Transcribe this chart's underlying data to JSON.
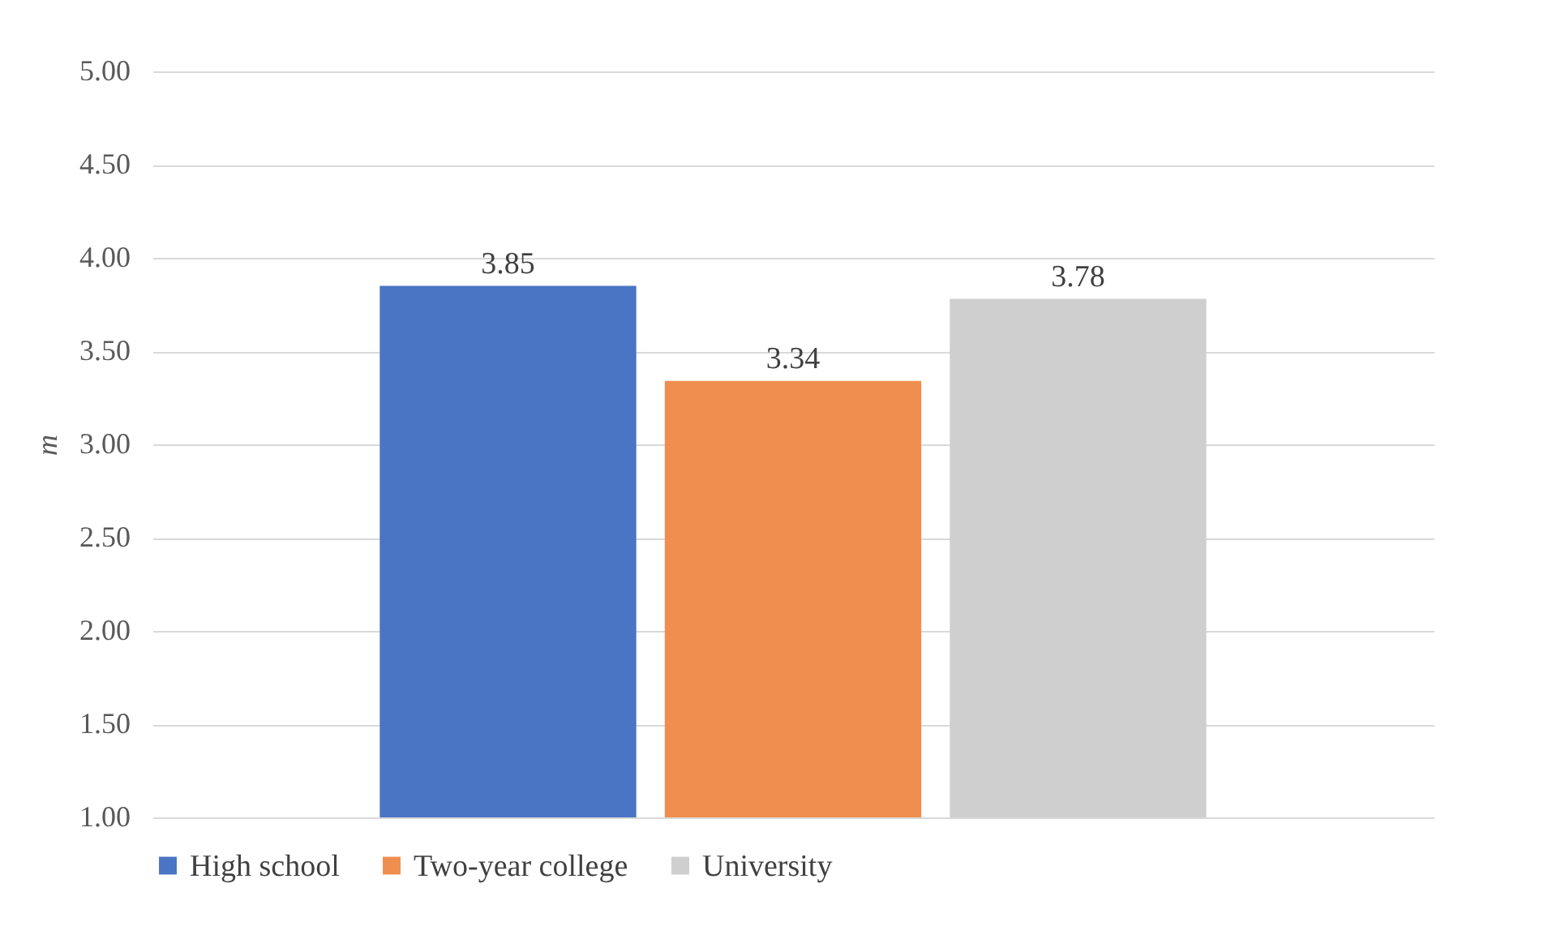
{
  "chart_data": {
    "type": "bar",
    "ylabel": "m",
    "categories": [
      null
    ],
    "series": [
      {
        "name": "High school",
        "color": "#4a74c4",
        "values": [
          3.85
        ]
      },
      {
        "name": "Two-year college",
        "color": "#ef8e4f",
        "values": [
          3.34
        ]
      },
      {
        "name": "University",
        "color": "#cfcfcf",
        "values": [
          3.78
        ]
      }
    ],
    "ylim": [
      1,
      5
    ],
    "yticks": [
      {
        "value": 1,
        "label": "1.00"
      },
      {
        "value": 1.5,
        "label": "1.50"
      },
      {
        "value": 2,
        "label": "2.00"
      },
      {
        "value": 2.5,
        "label": "2.50"
      },
      {
        "value": 3,
        "label": "3.00"
      },
      {
        "value": 3.5,
        "label": "3.50"
      },
      {
        "value": 4,
        "label": "4.00"
      },
      {
        "value": 4.5,
        "label": "4.50"
      },
      {
        "value": 5,
        "label": "5.00"
      }
    ],
    "grid": "y",
    "legend": "bottom",
    "data_labels": true
  }
}
